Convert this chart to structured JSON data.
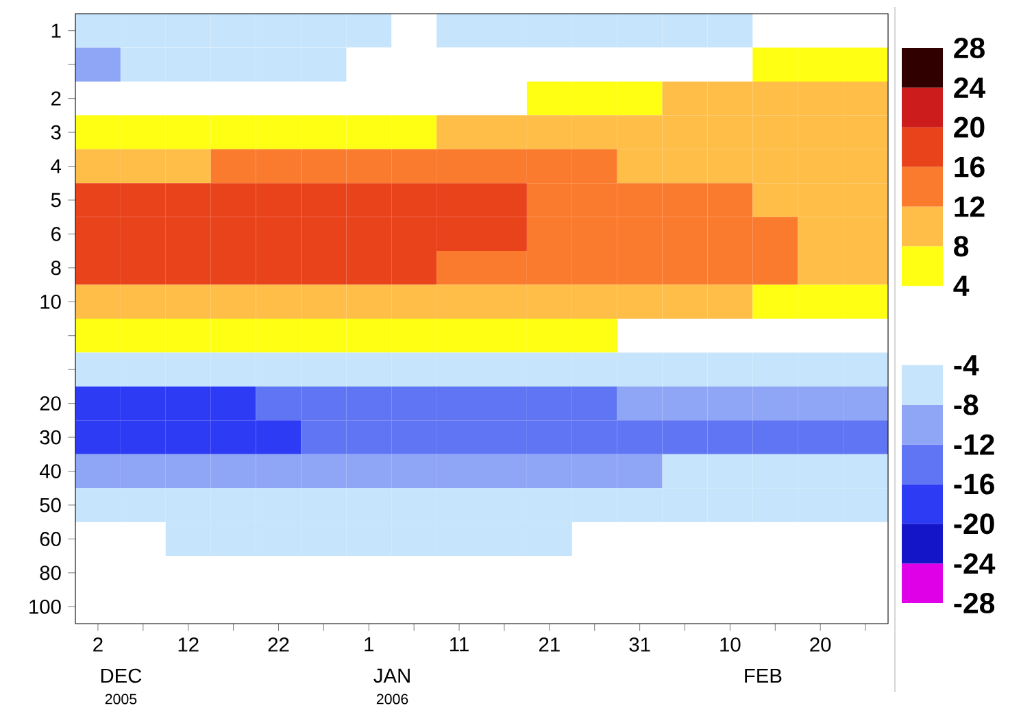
{
  "chart_data": {
    "type": "heatmap",
    "categories": [
      "2",
      null,
      "12",
      null,
      "22",
      null,
      "1",
      null,
      "11",
      null,
      "21",
      null,
      "31",
      null,
      "10",
      null,
      "20",
      null
    ],
    "y_categories": [
      "1",
      null,
      "2",
      "3",
      "4",
      "5",
      "6",
      "8",
      "10",
      null,
      null,
      "20",
      "30",
      "40",
      "50",
      "60",
      "80",
      "100"
    ],
    "cells": [
      [
        -6,
        -6,
        -6,
        -6,
        -6,
        -6,
        -6,
        null,
        -6,
        -6,
        -6,
        -6,
        -6,
        -6,
        -6,
        null,
        null,
        null
      ],
      [
        -10,
        -6,
        -6,
        -6,
        -6,
        -6,
        null,
        null,
        null,
        null,
        null,
        null,
        null,
        null,
        null,
        6,
        6,
        6
      ],
      [
        null,
        null,
        null,
        null,
        null,
        null,
        null,
        null,
        null,
        null,
        6,
        6,
        6,
        10,
        10,
        10,
        10,
        10
      ],
      [
        6,
        6,
        6,
        6,
        6,
        6,
        6,
        6,
        10,
        10,
        10,
        10,
        10,
        10,
        10,
        10,
        10,
        10
      ],
      [
        10,
        10,
        10,
        14,
        14,
        14,
        14,
        14,
        14,
        14,
        14,
        14,
        10,
        10,
        10,
        10,
        10,
        10
      ],
      [
        18,
        18,
        18,
        18,
        18,
        18,
        18,
        18,
        18,
        18,
        14,
        14,
        14,
        14,
        14,
        10,
        10,
        10
      ],
      [
        18,
        18,
        18,
        18,
        18,
        18,
        18,
        18,
        18,
        18,
        14,
        14,
        14,
        14,
        14,
        14,
        10,
        10
      ],
      [
        18,
        18,
        18,
        18,
        18,
        18,
        18,
        18,
        14,
        14,
        14,
        14,
        14,
        14,
        14,
        14,
        10,
        10
      ],
      [
        10,
        10,
        10,
        10,
        10,
        10,
        10,
        10,
        10,
        10,
        10,
        10,
        10,
        10,
        10,
        6,
        6,
        6
      ],
      [
        6,
        6,
        6,
        6,
        6,
        6,
        6,
        6,
        6,
        6,
        6,
        6,
        null,
        null,
        null,
        null,
        null,
        null
      ],
      [
        -6,
        -6,
        -6,
        -6,
        -6,
        -6,
        -6,
        -6,
        -6,
        -6,
        -6,
        -6,
        -6,
        -6,
        -6,
        -6,
        -6,
        -6
      ],
      [
        -18,
        -18,
        -18,
        -18,
        -14,
        -14,
        -14,
        -14,
        -14,
        -14,
        -14,
        -14,
        -10,
        -10,
        -10,
        -10,
        -10,
        -10
      ],
      [
        -18,
        -18,
        -18,
        -18,
        -18,
        -14,
        -14,
        -14,
        -14,
        -14,
        -14,
        -14,
        -14,
        -14,
        -14,
        -14,
        -14,
        -14
      ],
      [
        -10,
        -10,
        -10,
        -10,
        -10,
        -10,
        -10,
        -10,
        -10,
        -10,
        -10,
        -10,
        -10,
        -6,
        -6,
        -6,
        -6,
        -6
      ],
      [
        -6,
        -6,
        -6,
        -6,
        -6,
        -6,
        -6,
        -6,
        -6,
        -6,
        -6,
        -6,
        -6,
        -6,
        -6,
        -6,
        -6,
        -6
      ],
      [
        null,
        null,
        -6,
        -6,
        -6,
        -6,
        -6,
        -6,
        -6,
        -6,
        -6,
        null,
        null,
        null,
        null,
        null,
        null,
        null
      ],
      [
        null,
        null,
        null,
        null,
        null,
        null,
        null,
        null,
        null,
        null,
        null,
        null,
        null,
        null,
        null,
        null,
        null,
        null
      ],
      [
        null,
        null,
        null,
        null,
        null,
        null,
        null,
        null,
        null,
        null,
        null,
        null,
        null,
        null,
        null,
        null,
        null,
        null
      ]
    ],
    "clim": [
      -28,
      28
    ],
    "cticks": [
      -28,
      -24,
      -20,
      -16,
      -12,
      -8,
      -4,
      4,
      8,
      12,
      16,
      20,
      24,
      28
    ],
    "annotations": [
      "DEC",
      "2005",
      "JAN",
      "2006",
      "FEB"
    ]
  }
}
